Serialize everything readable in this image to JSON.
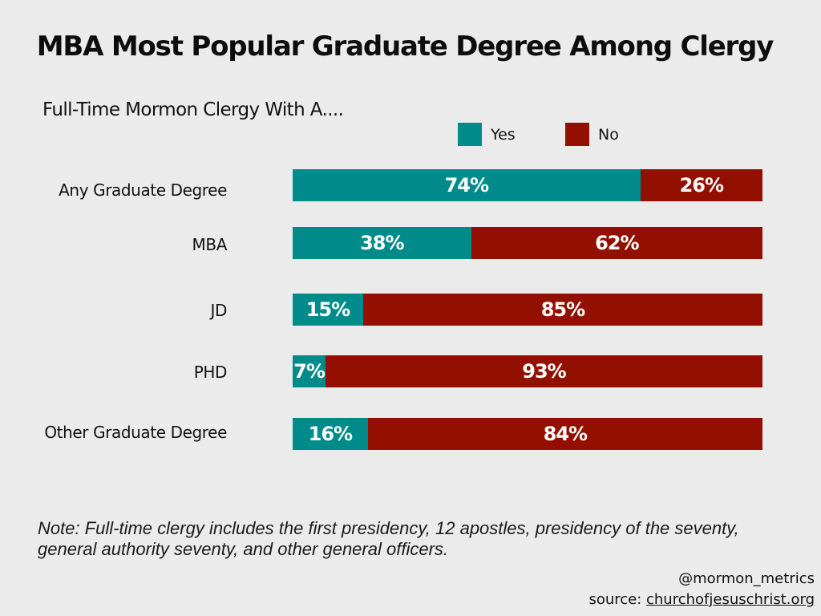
{
  "chart_data": {
    "type": "bar",
    "orientation": "horizontal",
    "stacked": true,
    "title": "MBA Most Popular Graduate Degree Among Clergy",
    "subtitle": "Full-Time Mormon Clergy With A....",
    "categories": [
      "Any Graduate Degree",
      "MBA",
      "JD",
      "PHD",
      "Other Graduate Degree"
    ],
    "series": [
      {
        "name": "Yes",
        "color": "#008b8b",
        "values": [
          74,
          38,
          15,
          7,
          16
        ],
        "labels": [
          "74%",
          "38%",
          "15%",
          "7%",
          "16%"
        ]
      },
      {
        "name": "No",
        "color": "#931000",
        "values": [
          26,
          62,
          85,
          93,
          84
        ],
        "labels": [
          "26%",
          "62%",
          "85%",
          "93%",
          "84%"
        ]
      }
    ],
    "xlim": [
      0,
      100
    ],
    "unit": "%",
    "grid": false,
    "legend_position": "top-right"
  },
  "note": "Note: Full-time clergy includes the first presidency, 12 apostles, presidency of the seventy, general authority seventy, and other general officers.",
  "credit": {
    "handle": "@mormon_metrics",
    "source_prefix": "source: ",
    "source_site": "churchofjesuschrist.org"
  }
}
